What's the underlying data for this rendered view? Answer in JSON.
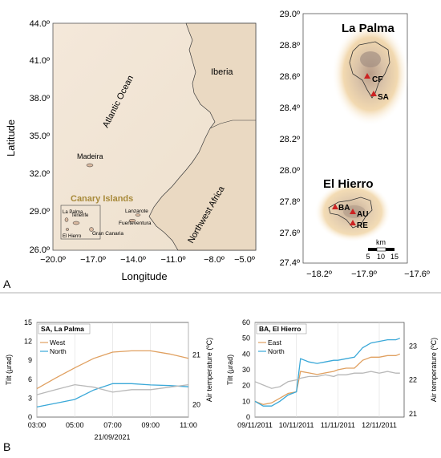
{
  "panel_a": {
    "label": "A",
    "map": {
      "xlabel": "Longitude",
      "ylabel": "Latitude",
      "x_ticks": [
        "−20.0º",
        "−17.0º",
        "−14.0º",
        "−11.0º",
        "−8.0º",
        "−5.0º"
      ],
      "y_ticks": [
        "44.0º",
        "41.0º",
        "38.0º",
        "35.0º",
        "32.0º",
        "29.0º",
        "26.0º"
      ],
      "labels": {
        "ocean": "Atlantic Ocean",
        "iberia": "Iberia",
        "africa": "Northwest Africa",
        "madeira": "Madeira",
        "canary": "Canary Islands",
        "la_palma": "La Palma",
        "tenerife": "Tenerife",
        "el_hierro": "El Hierro",
        "gran_canaria": "Gran Canaria",
        "lanzarote": "Lanzarote",
        "fuerteventura": "Fuerteventura"
      },
      "colors": {
        "land": "#efe2cf",
        "sea": "#f6ebde",
        "canary_label": "#a88a3a"
      }
    },
    "insets": {
      "x_ticks": [
        "−18.2º",
        "−17.9º",
        "−17.6º"
      ],
      "y_ticks": [
        "29.0º",
        "28.8º",
        "28.6º",
        "28.4º",
        "28.2º",
        "28.0º",
        "27.8º",
        "27.6º",
        "27.4º"
      ],
      "la_palma": {
        "title": "La Palma",
        "stations": [
          {
            "id": "CF",
            "label": "CF"
          },
          {
            "id": "SA",
            "label": "SA"
          }
        ]
      },
      "el_hierro": {
        "title": "El Hierro",
        "stations": [
          {
            "id": "BA",
            "label": "BA"
          },
          {
            "id": "AU",
            "label": "AU"
          },
          {
            "id": "RE",
            "label": "RE"
          }
        ]
      },
      "scalebar": {
        "unit": "km",
        "ticks": [
          "5",
          "10",
          "15"
        ]
      },
      "colors": {
        "station": "#cc2222",
        "halo": "#f0c890"
      }
    }
  },
  "panel_b": {
    "label": "B",
    "chart_data": [
      {
        "type": "line",
        "title": "SA, La Palma",
        "xlabel": "21/09/2021",
        "ylabel": "Tilt (µrad)",
        "y2label": "Air temperature (ºC)",
        "x_ticks": [
          "03:00",
          "05:00",
          "07:00",
          "09:00",
          "11:00"
        ],
        "y_ticks": [
          "0",
          "3",
          "6",
          "9",
          "12",
          "15"
        ],
        "y2_ticks": [
          "20",
          "21"
        ],
        "ylim": [
          0,
          15
        ],
        "y2lim": [
          19.75,
          21.65
        ],
        "x": [
          3,
          4,
          5,
          6,
          7,
          8,
          9,
          10,
          11
        ],
        "series": [
          {
            "name": "West",
            "color": "#e0a060",
            "values": [
              4.5,
              6.2,
              7.8,
              9.3,
              10.3,
              10.5,
              10.5,
              10.0,
              9.3
            ]
          },
          {
            "name": "North",
            "color": "#3aa8d8",
            "values": [
              1.6,
              2.2,
              2.8,
              4.3,
              5.3,
              5.3,
              5.1,
              5.0,
              4.8
            ]
          },
          {
            "name": "",
            "color": "#b8b8b8",
            "axis": "right",
            "values": [
              20.2,
              20.3,
              20.4,
              20.35,
              20.25,
              20.3,
              20.3,
              20.35,
              20.4
            ]
          }
        ]
      },
      {
        "type": "line",
        "title": "BA, El Hierro",
        "ylabel": "Tilt (µrad)",
        "y2label": "Air temperature (ºC)",
        "x_ticks": [
          "09/11/2011",
          "10/11/2011",
          "11/11/2011",
          "12/11/2011"
        ],
        "y_ticks": [
          "0",
          "10",
          "20",
          "30",
          "40",
          "50",
          "60"
        ],
        "y2_ticks": [
          "21",
          "22",
          "23"
        ],
        "ylim": [
          0,
          60
        ],
        "y2lim": [
          20.9,
          23.7
        ],
        "x": [
          0.0,
          0.2,
          0.4,
          0.6,
          0.8,
          1.0,
          1.1,
          1.3,
          1.5,
          1.7,
          1.9,
          2.0,
          2.2,
          2.4,
          2.6,
          2.8,
          3.0,
          3.2,
          3.4,
          3.5
        ],
        "series": [
          {
            "name": "East",
            "color": "#e0a060",
            "values": [
              10,
              8,
              9,
              12,
              15,
              16,
              29,
              28,
              27,
              28,
              29,
              30,
              31,
              31,
              36,
              38,
              38,
              39,
              39,
              40
            ]
          },
          {
            "name": "North",
            "color": "#3aa8d8",
            "values": [
              10,
              7,
              7,
              10,
              14,
              16,
              37,
              35,
              34,
              35,
              36,
              36,
              37,
              38,
              44,
              47,
              48,
              49,
              49,
              50
            ]
          },
          {
            "name": "",
            "color": "#b8b8b8",
            "axis": "right",
            "values": [
              21.95,
              21.85,
              21.75,
              21.8,
              21.95,
              22.0,
              22.05,
              22.1,
              22.1,
              22.15,
              22.1,
              22.15,
              22.15,
              22.2,
              22.2,
              22.25,
              22.2,
              22.25,
              22.2,
              22.2
            ]
          }
        ]
      }
    ]
  }
}
